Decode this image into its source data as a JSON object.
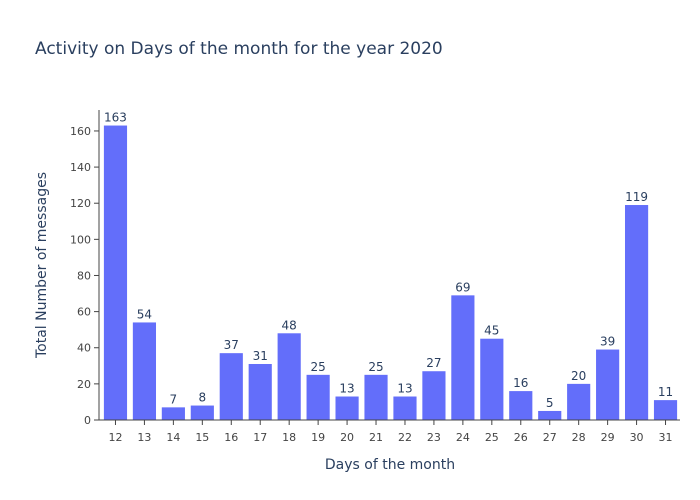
{
  "chart_data": {
    "type": "bar",
    "title": "Activity on Days of the month for the year 2020",
    "xlabel": "Days of the month",
    "ylabel": "Total Number of messages",
    "categories": [
      "12",
      "13",
      "14",
      "15",
      "16",
      "17",
      "18",
      "19",
      "20",
      "21",
      "22",
      "23",
      "24",
      "25",
      "26",
      "27",
      "28",
      "29",
      "30",
      "31"
    ],
    "values": [
      163,
      54,
      7,
      8,
      37,
      31,
      48,
      25,
      13,
      25,
      13,
      27,
      69,
      45,
      16,
      5,
      20,
      39,
      119,
      11
    ],
    "y_ticks": [
      "0",
      "20",
      "40",
      "60",
      "80",
      "100",
      "120",
      "140",
      "160"
    ],
    "ylim": [
      0,
      171.6
    ],
    "bar_color": "#636efa",
    "grid": false,
    "legend": "none"
  }
}
